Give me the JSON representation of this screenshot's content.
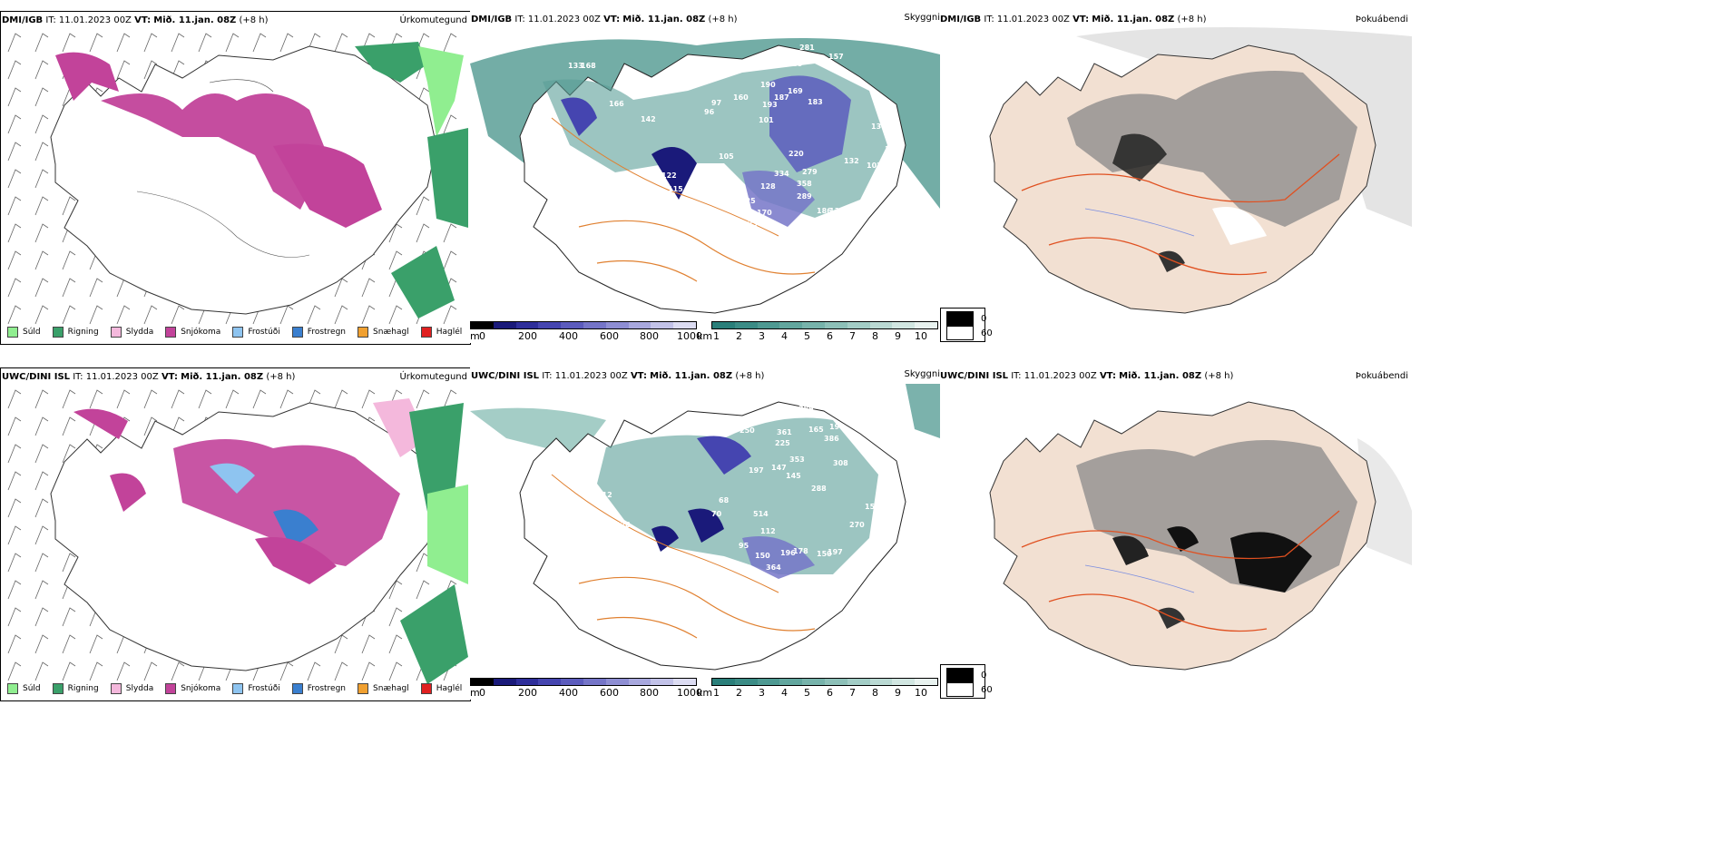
{
  "rows": [
    {
      "model": "DMI/IGB",
      "it_label": "IT:",
      "it_value": "11.01.2023 00Z",
      "vt_label": "VT:",
      "vt_value": "Mið. 11.jan. 08Z",
      "lead": "(+8 h)"
    },
    {
      "model": "UWC/DINI ISL",
      "it_label": "IT:",
      "it_value": "11.01.2023 00Z",
      "vt_label": "VT:",
      "vt_value": "Mið. 11.jan. 08Z",
      "lead": "(+8 h)"
    }
  ],
  "fields": {
    "precip_type": "Úrkomutegund",
    "visibility": "Skyggni",
    "fog_index": "Þokuábendi"
  },
  "precip_legend": [
    {
      "label": "Súld",
      "color": "#90ee90"
    },
    {
      "label": "Rigning",
      "color": "#3aa06a"
    },
    {
      "label": "Slydda",
      "color": "#f4b8dc"
    },
    {
      "label": "Snjókoma",
      "color": "#c2439a"
    },
    {
      "label": "Frostúði",
      "color": "#8ec4f0"
    },
    {
      "label": "Frostregn",
      "color": "#3a7fcf"
    },
    {
      "label": "Snæhagl",
      "color": "#f0a030"
    },
    {
      "label": "Haglél",
      "color": "#e02020"
    }
  ],
  "cloud_base_scale": {
    "unit": "m",
    "ticks": [
      "0",
      "200",
      "400",
      "600",
      "800",
      "1000"
    ],
    "colors": [
      "#000000",
      "#1a1a7a",
      "#2e2e9a",
      "#4545b0",
      "#5c5cbd",
      "#7575c8",
      "#8e8ed3",
      "#a8a8de",
      "#c2c2e8",
      "#dcdcf2"
    ]
  },
  "visibility_scale": {
    "unit": "km",
    "ticks": [
      "1",
      "2",
      "3",
      "4",
      "5",
      "6",
      "7",
      "8",
      "9",
      "10"
    ],
    "colors": [
      "#2a7f7a",
      "#3b8c86",
      "#4e9992",
      "#62a69e",
      "#77b3ab",
      "#8dc0b8",
      "#a3cdc6",
      "#bad9d3",
      "#d1e6e1",
      "#e8f2ef"
    ]
  },
  "fog_legend": [
    {
      "label": "0",
      "color": "#000000"
    },
    {
      "label": "60",
      "color": "#ffffff"
    }
  ],
  "station_values": {
    "top": [
      "133",
      "168",
      "281",
      "157",
      "139",
      "190",
      "187",
      "169",
      "183",
      "193",
      "97",
      "96",
      "160",
      "166",
      "101",
      "142",
      "122",
      "115",
      "116",
      "148",
      "105",
      "128",
      "125",
      "170",
      "237",
      "220",
      "334",
      "358",
      "279",
      "289",
      "132",
      "186",
      "133",
      "102",
      "127",
      "134"
    ],
    "bottom": [
      "389",
      "141",
      "216",
      "250",
      "361",
      "165",
      "196",
      "386",
      "225",
      "353",
      "308",
      "197",
      "147",
      "145",
      "288",
      "128",
      "112",
      "68",
      "70",
      "95",
      "150",
      "364",
      "196",
      "178",
      "150",
      "197",
      "353",
      "514",
      "270",
      "158",
      "312",
      "128"
    ]
  }
}
